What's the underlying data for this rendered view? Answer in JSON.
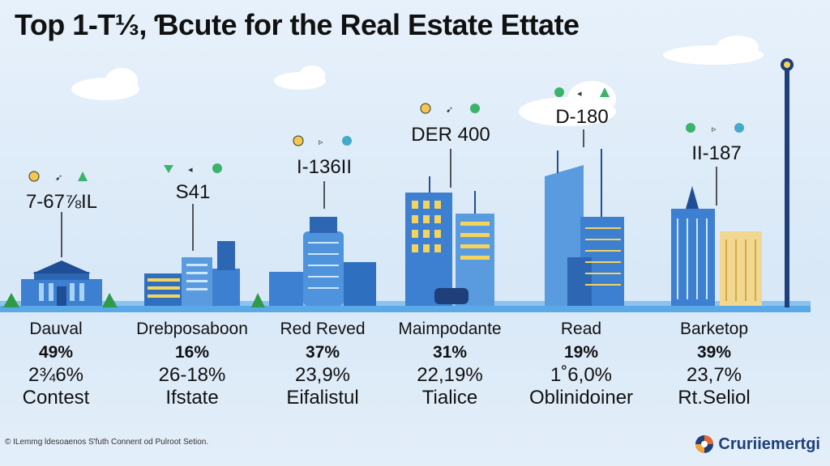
{
  "title": "Top 1-T⅓, Ɓcute for the Real Estate Ettate",
  "values": [
    "7-67⅞IL",
    "S41",
    "I-136II",
    "DER 400",
    "D-180",
    "II-187"
  ],
  "columns": [
    {
      "head": "Dauval",
      "stat": "49%",
      "sub": "2¾6%",
      "foot": "Contest"
    },
    {
      "head": "Drebposaboon",
      "stat": "16%",
      "sub": "26-18%",
      "foot": "Ifstate"
    },
    {
      "head": "Red Reved",
      "stat": "37%",
      "sub": "23,9%",
      "foot": "Eifalistul"
    },
    {
      "head": "Maimpodante",
      "stat": "31%",
      "sub": "22,19%",
      "foot": "Tialice"
    },
    {
      "head": "Read",
      "stat": "19%",
      "sub": "1˚6,0%",
      "foot": "Oblinidoiner"
    },
    {
      "head": "Barketop",
      "stat": "39%",
      "sub": "23,7%",
      "foot": "Rt.Seliol"
    }
  ],
  "footnote": "© ILemmg ldesoaenos S'futh Connent od Pulroot Setion.",
  "brand": {
    "name": "Cruriiemertgi",
    "icon": "brand-logo-icon"
  },
  "colors": {
    "building_blue": "#3d7fd0",
    "window_yellow": "#f4d35e",
    "ground": "#5aa9e6",
    "accent_orange": "#e8692d"
  }
}
